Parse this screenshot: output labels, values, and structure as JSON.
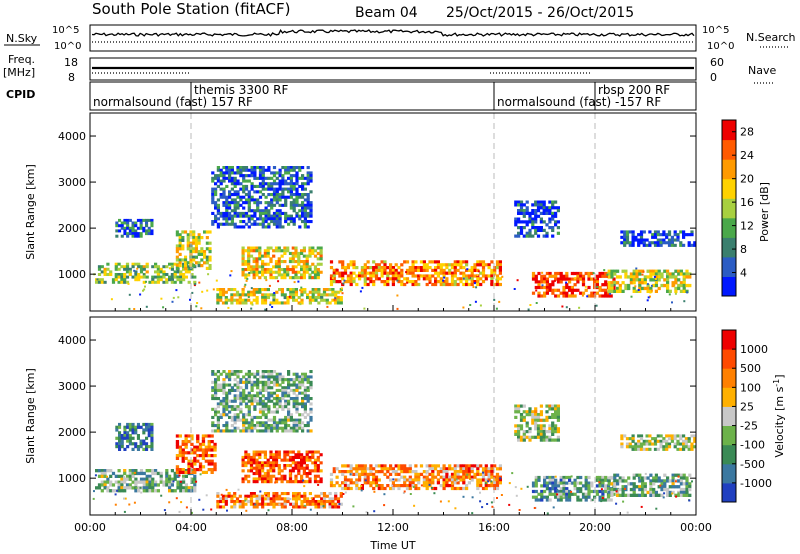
{
  "header": {
    "station": "South Pole Station (fitACF)",
    "beam": "Beam 04",
    "daterange": "25/Oct/2015 - 26/Oct/2015"
  },
  "top_panels": {
    "nsky": {
      "label": "N.Sky",
      "tick_top": "10^5",
      "tick_bottom": "10^0"
    },
    "nsearch": {
      "label": "N.Search",
      "tick_top": "10^5",
      "tick_bottom": "10^0"
    },
    "freq": {
      "label_line1": "Freq.",
      "label_line2": "[MHz]",
      "tick_top": "18",
      "tick_bottom": "8"
    },
    "nave": {
      "label": "Nave",
      "tick_top": "60",
      "tick_bottom": "0"
    },
    "cpid": {
      "label": "CPID",
      "segments": [
        {
          "start_hour": 0,
          "end_hour": 4,
          "text": "normalsound (fast) 157 RF"
        },
        {
          "start_hour": 4,
          "end_hour": 16,
          "text": "themis 3300 RF"
        },
        {
          "start_hour": 16,
          "end_hour": 20,
          "text": "normalsound (fast) -157 RF"
        },
        {
          "start_hour": 20,
          "end_hour": 24,
          "text": "rbsp 200 RF"
        }
      ]
    }
  },
  "chart_data": [
    {
      "type": "heatmap",
      "name": "power",
      "ylabel": "Slant Range [km]",
      "xlabel": "",
      "xlim": [
        0,
        24
      ],
      "ylim": [
        200,
        4500
      ],
      "yticks": [
        1000,
        2000,
        3000,
        4000
      ],
      "colorbar": {
        "label": "Power [dB]",
        "ticks": [
          "4",
          "8",
          "12",
          "16",
          "20",
          "24",
          "28"
        ],
        "range": [
          0,
          30
        ],
        "colors": [
          "#0018ff",
          "#2b5cc4",
          "#3a7f6e",
          "#4aa84a",
          "#a8d040",
          "#ffd200",
          "#ff9a00",
          "#ff5a00",
          "#ee0000"
        ]
      },
      "echo_regions": [
        {
          "h0": 0.2,
          "h1": 4.2,
          "r0": 800,
          "r1": 1250,
          "level": 0.45
        },
        {
          "h0": 1.0,
          "h1": 2.5,
          "r0": 1800,
          "r1": 2200,
          "level": 0.2
        },
        {
          "h0": 3.4,
          "h1": 4.8,
          "r0": 1100,
          "r1": 1950,
          "level": 0.55
        },
        {
          "h0": 4.8,
          "h1": 8.8,
          "r0": 2000,
          "r1": 3350,
          "level": 0.2
        },
        {
          "h0": 6.0,
          "h1": 9.2,
          "r0": 900,
          "r1": 1600,
          "level": 0.6
        },
        {
          "h0": 5.0,
          "h1": 10.0,
          "r0": 350,
          "r1": 700,
          "level": 0.55
        },
        {
          "h0": 9.5,
          "h1": 16.3,
          "r0": 750,
          "r1": 1300,
          "level": 0.75
        },
        {
          "h0": 16.8,
          "h1": 18.6,
          "r0": 1800,
          "r1": 2600,
          "level": 0.15
        },
        {
          "h0": 17.5,
          "h1": 20.8,
          "r0": 500,
          "r1": 1050,
          "level": 0.92
        },
        {
          "h0": 20.5,
          "h1": 23.8,
          "r0": 600,
          "r1": 1100,
          "level": 0.55
        },
        {
          "h0": 21.0,
          "h1": 24.0,
          "r0": 1600,
          "r1": 1950,
          "level": 0.15
        }
      ]
    },
    {
      "type": "heatmap",
      "name": "velocity",
      "ylabel": "Slant Range [km]",
      "xlabel": "Time UT",
      "xlim": [
        0,
        24
      ],
      "ylim": [
        200,
        4500
      ],
      "yticks": [
        1000,
        2000,
        3000,
        4000
      ],
      "xticks": [
        "00:00",
        "04:00",
        "08:00",
        "12:00",
        "16:00",
        "20:00",
        "00:00"
      ],
      "colorbar": {
        "label": "Velocity [m s^-1]",
        "ticks": [
          "1000",
          "500",
          "100",
          "25",
          "-25",
          "-100",
          "-500",
          "-1000"
        ],
        "range": [
          -1000,
          1000
        ],
        "colors": [
          "#2040c0",
          "#3b78a0",
          "#3a8a55",
          "#6cb24a",
          "#c8c8c8",
          "#ffb000",
          "#ff8000",
          "#ff4a00",
          "#ee0000"
        ]
      },
      "echo_regions": [
        {
          "h0": 0.2,
          "h1": 4.2,
          "r0": 700,
          "r1": 1200,
          "level": 0.35
        },
        {
          "h0": 1.0,
          "h1": 2.5,
          "r0": 1600,
          "r1": 2200,
          "level": 0.2
        },
        {
          "h0": 3.4,
          "h1": 5.0,
          "r0": 1100,
          "r1": 1950,
          "level": 0.8
        },
        {
          "h0": 4.8,
          "h1": 8.8,
          "r0": 2000,
          "r1": 3350,
          "level": 0.35
        },
        {
          "h0": 6.0,
          "h1": 9.2,
          "r0": 900,
          "r1": 1600,
          "level": 0.85
        },
        {
          "h0": 5.0,
          "h1": 10.0,
          "r0": 350,
          "r1": 700,
          "level": 0.75
        },
        {
          "h0": 9.5,
          "h1": 16.3,
          "r0": 750,
          "r1": 1300,
          "level": 0.7
        },
        {
          "h0": 16.8,
          "h1": 18.6,
          "r0": 1800,
          "r1": 2600,
          "level": 0.45
        },
        {
          "h0": 17.5,
          "h1": 20.8,
          "r0": 500,
          "r1": 1050,
          "level": 0.3
        },
        {
          "h0": 20.5,
          "h1": 23.8,
          "r0": 600,
          "r1": 1100,
          "level": 0.35
        },
        {
          "h0": 21.0,
          "h1": 24.0,
          "r0": 1600,
          "r1": 1950,
          "level": 0.45
        }
      ]
    }
  ]
}
